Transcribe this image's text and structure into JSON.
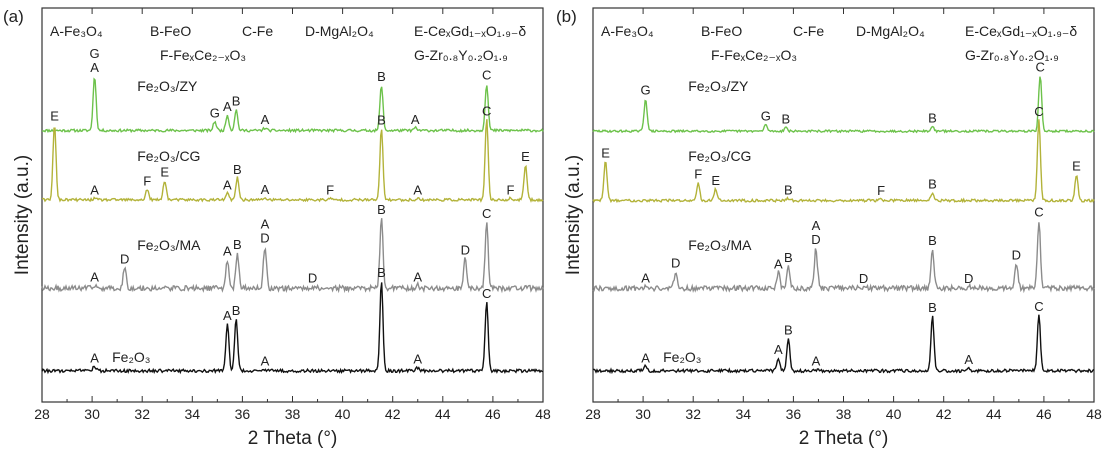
{
  "chart_data": [
    {
      "panel": "(a)",
      "type": "line",
      "xlabel": "2 Theta (°)",
      "ylabel": "Intensity (a.u.)",
      "xlim": [
        28,
        48
      ],
      "x_ticks": [
        "28",
        "30",
        "32",
        "34",
        "36",
        "38",
        "40",
        "42",
        "44",
        "46",
        "48"
      ],
      "y_ticks": "none",
      "grid": false,
      "legend_placement": "top",
      "phase_legend": [
        "A-Fe₃O₄",
        "B-FeO",
        "C-Fe",
        "D-MgAl₂O₄",
        "E-CeₓGd₁₋ₓO₁.₉₋δ",
        "F-FeₓCe₂₋ₓO₃",
        "G-Zr₀.₈Y₀.₂O₁.₉"
      ],
      "series": [
        {
          "name": "Fe₂O₃/ZY",
          "color": "#6dc24b",
          "baseline": 0.5,
          "noise": 0.1,
          "peaks": [
            [
              30.1,
              4.2,
              "G|A"
            ],
            [
              34.9,
              0.7,
              "G"
            ],
            [
              35.4,
              1.2,
              "A"
            ],
            [
              35.75,
              1.6,
              "B"
            ],
            [
              36.9,
              0.2,
              "A"
            ],
            [
              41.55,
              3.5,
              "B"
            ],
            [
              42.9,
              0.2,
              "A"
            ],
            [
              45.75,
              3.6,
              "C"
            ]
          ]
        },
        {
          "name": "Fe₂O₃/CG",
          "color": "#b3b33a",
          "baseline": 0.55,
          "noise": 0.1,
          "peaks": [
            [
              28.5,
              5.8,
              "E"
            ],
            [
              30.1,
              0.1,
              "A"
            ],
            [
              32.2,
              0.8,
              "F"
            ],
            [
              32.9,
              1.5,
              "E"
            ],
            [
              35.4,
              0.5,
              "A"
            ],
            [
              35.8,
              1.7,
              "B"
            ],
            [
              36.9,
              0.15,
              "A"
            ],
            [
              39.5,
              0.1,
              "F"
            ],
            [
              41.55,
              5.5,
              "B"
            ],
            [
              43.0,
              0.1,
              "A"
            ],
            [
              45.75,
              6.2,
              "C"
            ],
            [
              46.7,
              0.1,
              "F"
            ],
            [
              47.3,
              2.7,
              "E"
            ]
          ]
        },
        {
          "name": "Fe₂O₃/MA",
          "color": "#8c8c8c",
          "baseline": 0.6,
          "noise": 0.2,
          "peaks": [
            [
              30.1,
              0.2,
              "A"
            ],
            [
              31.3,
              1.6,
              "D"
            ],
            [
              35.4,
              2.2,
              "A"
            ],
            [
              35.8,
              2.7,
              "B"
            ],
            [
              36.9,
              3.2,
              "A|D"
            ],
            [
              38.8,
              0.15,
              "D"
            ],
            [
              41.55,
              5.4,
              "B"
            ],
            [
              43.0,
              0.2,
              "A"
            ],
            [
              44.9,
              2.3,
              "D"
            ],
            [
              45.75,
              5.1,
              "C"
            ]
          ]
        },
        {
          "name": "Fe₂O₃",
          "color": "#111111",
          "baseline": 0.4,
          "noise": 0.12,
          "peaks": [
            [
              30.1,
              0.35,
              "A"
            ],
            [
              35.4,
              3.6,
              "A"
            ],
            [
              35.75,
              4.0,
              "B"
            ],
            [
              36.9,
              0.1,
              "A"
            ],
            [
              41.55,
              6.9,
              "B"
            ],
            [
              43.0,
              0.25,
              "A"
            ],
            [
              45.75,
              5.3,
              "C"
            ]
          ]
        }
      ]
    },
    {
      "panel": "(b)",
      "type": "line",
      "xlabel": "2 Theta (°)",
      "ylabel": "Intensity (a.u.)",
      "xlim": [
        28,
        48
      ],
      "x_ticks": [
        "28",
        "30",
        "32",
        "34",
        "36",
        "38",
        "40",
        "42",
        "44",
        "46",
        "48"
      ],
      "y_ticks": "none",
      "grid": false,
      "legend_placement": "top",
      "phase_legend": [
        "A-Fe₃O₄",
        "B-FeO",
        "C-Fe",
        "D-MgAl₂O₄",
        "E-CeₓGd₁₋ₓO₁.₉₋δ",
        "F-FeₓCe₂₋ₓO₃",
        "G-Zr₀.₈Y₀.₂O₁.₉"
      ],
      "series": [
        {
          "name": "Fe₂O₃/ZY",
          "color": "#6dc24b",
          "baseline": 0.45,
          "noise": 0.08,
          "peaks": [
            [
              30.1,
              2.5,
              "G"
            ],
            [
              34.9,
              0.5,
              "G"
            ],
            [
              35.7,
              0.3,
              "B"
            ],
            [
              41.55,
              0.35,
              "B"
            ],
            [
              45.85,
              4.3,
              "C"
            ]
          ]
        },
        {
          "name": "Fe₂O₃/CG",
          "color": "#b3b33a",
          "baseline": 0.5,
          "noise": 0.1,
          "peaks": [
            [
              28.5,
              3.0,
              "E"
            ],
            [
              32.2,
              1.4,
              "F"
            ],
            [
              32.9,
              0.9,
              "E"
            ],
            [
              35.8,
              0.15,
              "B"
            ],
            [
              39.5,
              0.1,
              "F"
            ],
            [
              41.55,
              0.6,
              "B"
            ],
            [
              45.8,
              6.2,
              "C"
            ],
            [
              47.3,
              2.0,
              "E"
            ]
          ]
        },
        {
          "name": "Fe₂O₃/MA",
          "color": "#8c8c8c",
          "baseline": 0.6,
          "noise": 0.2,
          "peaks": [
            [
              30.1,
              0.15,
              "A"
            ],
            [
              31.3,
              1.3,
              "D"
            ],
            [
              35.4,
              1.2,
              "A"
            ],
            [
              35.8,
              1.7,
              "B"
            ],
            [
              36.9,
              3.1,
              "A|D"
            ],
            [
              38.8,
              0.1,
              "D"
            ],
            [
              41.55,
              3.0,
              "B"
            ],
            [
              43.0,
              0.1,
              "D"
            ],
            [
              44.9,
              1.9,
              "D"
            ],
            [
              45.8,
              5.2,
              "C"
            ]
          ]
        },
        {
          "name": "Fe₂O₃",
          "color": "#111111",
          "baseline": 0.4,
          "noise": 0.12,
          "peaks": [
            [
              30.1,
              0.35,
              "A"
            ],
            [
              35.4,
              1.0,
              "A"
            ],
            [
              35.8,
              2.5,
              "B"
            ],
            [
              36.9,
              0.1,
              "A"
            ],
            [
              41.55,
              4.2,
              "B"
            ],
            [
              43.0,
              0.2,
              "A"
            ],
            [
              45.8,
              4.3,
              "C"
            ]
          ]
        }
      ]
    }
  ]
}
